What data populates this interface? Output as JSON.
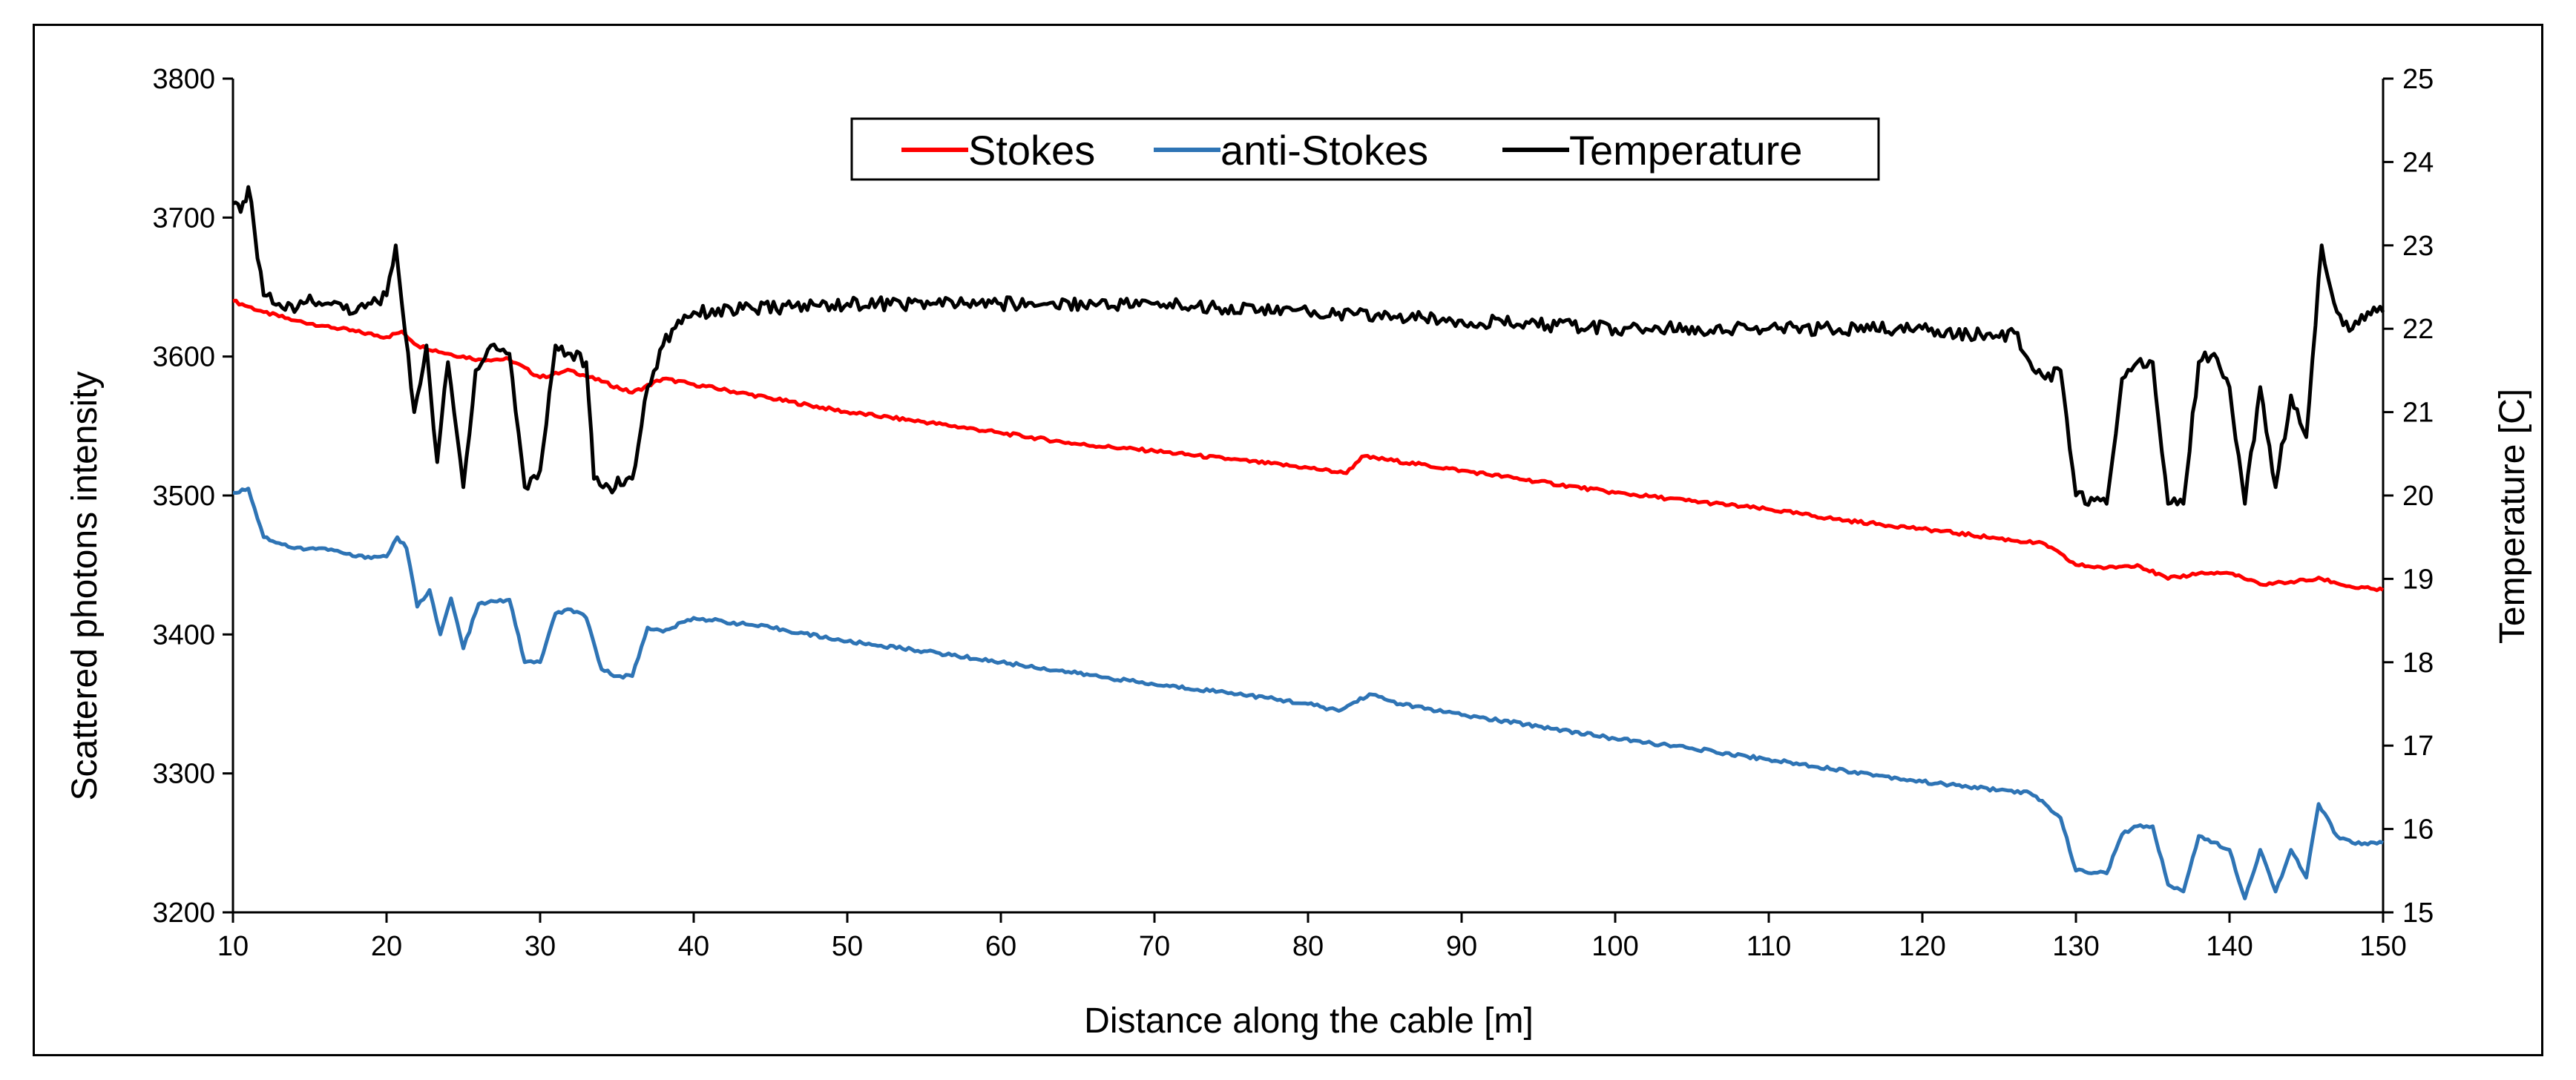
{
  "chart_data": {
    "type": "line",
    "title": "",
    "xlabel": "Distance along  the cable [m]",
    "ylabel": "Scattered photons intensity",
    "y2label": "Temperature  [C]",
    "xlim": [
      10,
      150
    ],
    "ylim": [
      3200,
      3800
    ],
    "y2lim": [
      15,
      25
    ],
    "xticks": [
      "10",
      "20",
      "30",
      "40",
      "50",
      "60",
      "70",
      "80",
      "90",
      "100",
      "110",
      "120",
      "130",
      "140",
      "150"
    ],
    "yticks": [
      "3200",
      "3300",
      "3400",
      "3500",
      "3600",
      "3700",
      "3800"
    ],
    "y2ticks": [
      "15",
      "16",
      "17",
      "18",
      "19",
      "20",
      "21",
      "22",
      "23",
      "24",
      "25"
    ],
    "legend_position": "top-center",
    "grid": false,
    "series": [
      {
        "name": "Stokes",
        "axis": "left",
        "color": "#ff0000",
        "points": [
          [
            10,
            3640
          ],
          [
            12,
            3632
          ],
          [
            14,
            3626
          ],
          [
            16,
            3622
          ],
          [
            18,
            3618
          ],
          [
            20,
            3614
          ],
          [
            21,
            3618
          ],
          [
            22,
            3608
          ],
          [
            24,
            3602
          ],
          [
            26,
            3598
          ],
          [
            28,
            3598
          ],
          [
            30,
            3585
          ],
          [
            32,
            3590
          ],
          [
            34,
            3582
          ],
          [
            36,
            3574
          ],
          [
            38,
            3584
          ],
          [
            40,
            3580
          ],
          [
            45,
            3570
          ],
          [
            50,
            3560
          ],
          [
            55,
            3553
          ],
          [
            60,
            3545
          ],
          [
            65,
            3537
          ],
          [
            70,
            3532
          ],
          [
            75,
            3526
          ],
          [
            80,
            3520
          ],
          [
            82.5,
            3516
          ],
          [
            83.5,
            3528
          ],
          [
            85,
            3526
          ],
          [
            90,
            3518
          ],
          [
            95,
            3510
          ],
          [
            100,
            3502
          ],
          [
            105,
            3496
          ],
          [
            110,
            3490
          ],
          [
            115,
            3482
          ],
          [
            120,
            3476
          ],
          [
            125,
            3469
          ],
          [
            128,
            3465
          ],
          [
            130,
            3450
          ],
          [
            132,
            3448
          ],
          [
            134,
            3450
          ],
          [
            136,
            3440
          ],
          [
            138,
            3444
          ],
          [
            140,
            3444
          ],
          [
            142,
            3436
          ],
          [
            144,
            3438
          ],
          [
            146,
            3440
          ],
          [
            148,
            3434
          ],
          [
            150,
            3432
          ]
        ]
      },
      {
        "name": "anti-Stokes",
        "axis": "left",
        "color": "#2e74b5",
        "points": [
          [
            10,
            3502
          ],
          [
            11,
            3505
          ],
          [
            12,
            3470
          ],
          [
            14,
            3462
          ],
          [
            16,
            3462
          ],
          [
            18,
            3456
          ],
          [
            20,
            3456
          ],
          [
            20.7,
            3470
          ],
          [
            21.3,
            3462
          ],
          [
            22,
            3420
          ],
          [
            22.8,
            3432
          ],
          [
            23.5,
            3400
          ],
          [
            24.2,
            3426
          ],
          [
            25,
            3390
          ],
          [
            26,
            3422
          ],
          [
            28,
            3425
          ],
          [
            29,
            3380
          ],
          [
            30,
            3380
          ],
          [
            31,
            3415
          ],
          [
            32,
            3418
          ],
          [
            33,
            3412
          ],
          [
            34,
            3375
          ],
          [
            35,
            3370
          ],
          [
            36,
            3370
          ],
          [
            37,
            3405
          ],
          [
            38,
            3402
          ],
          [
            40,
            3412
          ],
          [
            45,
            3405
          ],
          [
            50,
            3395
          ],
          [
            55,
            3388
          ],
          [
            60,
            3380
          ],
          [
            65,
            3372
          ],
          [
            70,
            3364
          ],
          [
            75,
            3358
          ],
          [
            80,
            3350
          ],
          [
            82,
            3345
          ],
          [
            84,
            3357
          ],
          [
            86,
            3350
          ],
          [
            90,
            3342
          ],
          [
            95,
            3334
          ],
          [
            100,
            3325
          ],
          [
            105,
            3318
          ],
          [
            110,
            3310
          ],
          [
            115,
            3302
          ],
          [
            120,
            3294
          ],
          [
            125,
            3288
          ],
          [
            127,
            3286
          ],
          [
            128,
            3278
          ],
          [
            129,
            3268
          ],
          [
            130,
            3230
          ],
          [
            132,
            3228
          ],
          [
            133,
            3256
          ],
          [
            134,
            3262
          ],
          [
            135,
            3262
          ],
          [
            136,
            3220
          ],
          [
            137,
            3215
          ],
          [
            138,
            3255
          ],
          [
            140,
            3245
          ],
          [
            141,
            3210
          ],
          [
            142,
            3245
          ],
          [
            143,
            3215
          ],
          [
            144,
            3245
          ],
          [
            145,
            3225
          ],
          [
            145.8,
            3278
          ],
          [
            147,
            3255
          ],
          [
            148,
            3250
          ],
          [
            150,
            3250
          ]
        ]
      },
      {
        "name": "Temperature",
        "axis": "right",
        "color": "#000000",
        "points": [
          [
            10,
            23.5
          ],
          [
            10.5,
            23.4
          ],
          [
            11,
            23.7
          ],
          [
            12,
            22.4
          ],
          [
            13,
            22.3
          ],
          [
            14,
            22.2
          ],
          [
            15,
            22.4
          ],
          [
            16,
            22.3
          ],
          [
            17,
            22.3
          ],
          [
            18,
            22.2
          ],
          [
            19,
            22.3
          ],
          [
            20,
            22.4
          ],
          [
            20.6,
            23.0
          ],
          [
            21,
            22.3
          ],
          [
            21.8,
            21.0
          ],
          [
            22.6,
            21.8
          ],
          [
            23.3,
            20.4
          ],
          [
            24,
            21.6
          ],
          [
            25,
            20.1
          ],
          [
            25.8,
            21.5
          ],
          [
            26.8,
            21.8
          ],
          [
            28,
            21.7
          ],
          [
            29,
            20.1
          ],
          [
            30,
            20.3
          ],
          [
            31,
            21.8
          ],
          [
            32,
            21.7
          ],
          [
            33,
            21.6
          ],
          [
            33.5,
            20.2
          ],
          [
            34.5,
            20.1
          ],
          [
            36,
            20.2
          ],
          [
            37,
            21.3
          ],
          [
            38,
            21.8
          ],
          [
            39,
            22.1
          ],
          [
            40,
            22.2
          ],
          [
            50,
            22.3
          ],
          [
            60,
            22.3
          ],
          [
            70,
            22.3
          ],
          [
            80,
            22.2
          ],
          [
            90,
            22.1
          ],
          [
            100,
            22.0
          ],
          [
            110,
            22.0
          ],
          [
            120,
            22.0
          ],
          [
            125,
            21.9
          ],
          [
            126,
            21.95
          ],
          [
            127,
            21.6
          ],
          [
            128,
            21.4
          ],
          [
            129,
            21.5
          ],
          [
            130,
            20.0
          ],
          [
            132,
            19.9
          ],
          [
            133,
            21.4
          ],
          [
            134,
            21.6
          ],
          [
            135,
            21.6
          ],
          [
            136,
            19.9
          ],
          [
            137,
            19.9
          ],
          [
            138,
            21.6
          ],
          [
            139,
            21.7
          ],
          [
            140,
            21.3
          ],
          [
            141,
            19.9
          ],
          [
            142,
            21.3
          ],
          [
            143,
            20.1
          ],
          [
            144,
            21.2
          ],
          [
            145,
            20.7
          ],
          [
            146,
            23.0
          ],
          [
            147,
            22.2
          ],
          [
            148,
            22.0
          ],
          [
            149,
            22.2
          ],
          [
            150,
            22.2
          ]
        ]
      }
    ]
  }
}
